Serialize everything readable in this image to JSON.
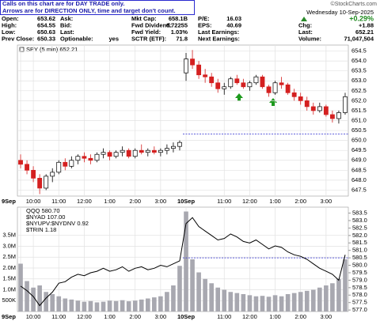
{
  "quote": {
    "notice": [
      "Calls on this chart are for DAY TRADE only.",
      "Arrows are for DIRECTION ONLY, time and target don't count."
    ],
    "copyright": "©StockCharts.com",
    "columns": [
      [
        [
          "Open:",
          "653.62"
        ],
        [
          "High:",
          "654.55"
        ],
        [
          "Low:",
          "650.63"
        ],
        [
          "Prev Close:",
          "650.33"
        ]
      ],
      [
        [
          "Ask:"
        ],
        [
          "Bid:"
        ],
        [
          "Last:"
        ],
        [
          "Optionable:",
          "yes"
        ]
      ],
      [
        [
          "Mkt Cap:",
          "658.1B"
        ],
        [
          "Fwd Dividend:",
          "6.72255"
        ],
        [
          "Fwd Yield:",
          "1.03%"
        ],
        [
          "SCTR (ETF):",
          "71.8"
        ]
      ],
      [
        [
          "P/E:",
          "16.03"
        ],
        [
          "EPS:",
          "40.69"
        ],
        [
          "Last Earnings:"
        ],
        [
          "Next Earnings:"
        ]
      ]
    ],
    "date": "Wednesday 10-Sep-2025",
    "change_pct": "+0.29%",
    "right": [
      [
        "Chg:",
        "+1.88"
      ],
      [
        "Last:",
        "652.21"
      ],
      [
        "Volume:",
        "71,047,504"
      ]
    ]
  },
  "chart_data": [
    {
      "type": "candlestick",
      "legend": "SPY (5 min) 652.21",
      "categories": [
        "9Sep",
        null,
        "10:00",
        null,
        null,
        null,
        "11:00",
        null,
        null,
        null,
        "12:00",
        null,
        null,
        null,
        "1:00",
        null,
        null,
        null,
        "2:00",
        null,
        null,
        null,
        "3:00",
        null,
        null,
        null,
        "10Sep",
        null,
        null,
        null,
        null,
        null,
        "11:00",
        null,
        null,
        null,
        "12:00",
        null,
        null,
        null,
        "1:00",
        null,
        null,
        null,
        "2:00",
        null,
        null,
        null,
        "3:00",
        null,
        null,
        null
      ],
      "open": [
        649.0,
        648.8,
        648.5,
        648.1,
        647.6,
        648.2,
        648.4,
        648.9,
        648.7,
        649.0,
        649.2,
        649.1,
        649.0,
        649.3,
        649.4,
        649.2,
        649.4,
        649.5,
        649.2,
        649.5,
        649.4,
        649.5,
        649.4,
        649.5,
        649.6,
        649.7,
        653.4,
        654.1,
        653.8,
        653.3,
        653.2,
        652.9,
        652.6,
        652.7,
        653.1,
        652.9,
        652.7,
        652.9,
        653.2,
        652.7,
        652.4,
        652.9,
        652.8,
        652.4,
        652.2,
        652.0,
        651.7,
        651.5,
        651.7,
        651.3,
        651.1,
        651.4
      ],
      "high": [
        649.3,
        649.0,
        648.7,
        648.3,
        648.3,
        648.6,
        649.0,
        649.1,
        649.2,
        649.3,
        649.4,
        649.3,
        649.4,
        649.6,
        649.5,
        649.5,
        649.7,
        649.6,
        649.6,
        649.8,
        649.6,
        649.7,
        649.6,
        649.8,
        649.9,
        650.0,
        654.4,
        654.55,
        654.0,
        653.6,
        653.4,
        653.1,
        652.9,
        653.2,
        653.3,
        653.1,
        653.0,
        653.3,
        653.3,
        652.8,
        653.0,
        653.2,
        652.9,
        652.6,
        652.4,
        652.2,
        651.9,
        651.9,
        651.8,
        651.5,
        651.5,
        652.4
      ],
      "low": [
        648.6,
        648.3,
        647.9,
        647.3,
        647.5,
        647.9,
        648.3,
        648.5,
        648.6,
        648.8,
        648.9,
        648.8,
        648.9,
        649.1,
        649.0,
        649.1,
        649.2,
        649.1,
        649.1,
        649.3,
        649.2,
        649.3,
        649.2,
        649.3,
        649.4,
        649.5,
        653.0,
        653.6,
        653.1,
        652.9,
        652.7,
        652.4,
        652.3,
        652.6,
        652.8,
        652.6,
        652.5,
        652.8,
        652.6,
        652.2,
        652.3,
        652.6,
        652.3,
        652.0,
        651.8,
        651.5,
        651.3,
        651.4,
        651.2,
        650.9,
        650.85,
        651.3
      ],
      "close": [
        648.8,
        648.5,
        648.1,
        647.6,
        648.2,
        648.4,
        648.9,
        648.7,
        649.0,
        649.2,
        649.1,
        649.0,
        649.3,
        649.4,
        649.2,
        649.4,
        649.5,
        649.2,
        649.5,
        649.4,
        649.5,
        649.4,
        649.5,
        649.6,
        649.7,
        649.9,
        654.1,
        653.8,
        653.3,
        653.2,
        652.9,
        652.6,
        652.7,
        653.1,
        652.9,
        652.7,
        652.9,
        653.2,
        652.7,
        652.4,
        652.9,
        652.8,
        652.4,
        652.2,
        652.0,
        651.7,
        651.5,
        651.7,
        651.3,
        651.1,
        651.4,
        652.2
      ],
      "up_color": "#000000",
      "down_color": "#d42020",
      "ref_line": {
        "value": 650.33,
        "color": "#2a2ad0"
      },
      "ylim": [
        647.2,
        654.8
      ],
      "yticks": [
        647.5,
        {
          "value": 648,
          "label": "648.0"
        },
        648.5,
        {
          "value": 649,
          "label": "649.0"
        },
        649.5,
        {
          "value": 650,
          "label": "650.0"
        },
        650.5,
        {
          "value": 651,
          "label": "651.0"
        },
        651.5,
        {
          "value": 652,
          "label": "652.0"
        },
        652.5,
        {
          "value": 653,
          "label": "653.0"
        },
        653.5,
        {
          "value": 654,
          "label": "654.0"
        },
        654.5
      ],
      "grid": true
    },
    {
      "type": "bar",
      "categories": [
        "9Sep",
        null,
        "10:00",
        null,
        null,
        null,
        "11:00",
        null,
        null,
        null,
        "12:00",
        null,
        null,
        null,
        "1:00",
        null,
        null,
        null,
        "2:00",
        null,
        null,
        null,
        "3:00",
        null,
        null,
        null,
        "10Sep",
        null,
        null,
        null,
        null,
        null,
        "11:00",
        null,
        null,
        null,
        "12:00",
        null,
        null,
        null,
        "1:00",
        null,
        null,
        null,
        "2:00",
        null,
        null,
        null,
        "3:00",
        null,
        null,
        null
      ],
      "values": [
        2200000,
        1400000,
        1100000,
        1200000,
        900000,
        800000,
        700000,
        600000,
        550000,
        500000,
        450000,
        480000,
        420000,
        450000,
        500000,
        480000,
        520000,
        470000,
        500000,
        550000,
        600000,
        650000,
        700000,
        900000,
        1200000,
        2100000,
        4600000,
        2400000,
        1800000,
        1500000,
        1300000,
        1100000,
        1000000,
        900000,
        850000,
        800000,
        750000,
        700000,
        720000,
        680000,
        750000,
        700000,
        800000,
        850000,
        900000,
        950000,
        1000000,
        1100000,
        1200000,
        1300000,
        1500000,
        2400000
      ],
      "color": "#a8a8b0",
      "ylim": [
        0,
        4800000
      ],
      "yticks": [
        {
          "value": 500000,
          "label": "500K"
        },
        {
          "value": 1000000,
          "label": "1.0M"
        },
        {
          "value": 1500000,
          "label": "1.5M"
        },
        {
          "value": 2000000,
          "label": "2.0M"
        },
        {
          "value": 2500000,
          "label": "2.5M"
        },
        {
          "value": 3000000,
          "label": "3.0M"
        },
        {
          "value": 3500000,
          "label": "3.5M"
        }
      ],
      "series": [
        {
          "name": "QQQ 580.70",
          "color": "#000000",
          "axis": "y2",
          "values": [
            578.6,
            578.3,
            577.9,
            577.3,
            577.8,
            578.2,
            578.8,
            578.9,
            579.2,
            579.4,
            579.3,
            579.5,
            579.6,
            579.8,
            579.6,
            579.7,
            579.9,
            579.6,
            579.8,
            579.9,
            579.7,
            579.8,
            580.0,
            579.9,
            580.1,
            580.3,
            582.8,
            583.2,
            582.6,
            582.3,
            582.0,
            581.7,
            581.8,
            582.1,
            581.9,
            581.6,
            581.5,
            581.7,
            581.4,
            581.1,
            581.3,
            581.2,
            580.9,
            580.7,
            580.6,
            580.4,
            580.1,
            579.8,
            579.6,
            579.4,
            579.0,
            580.7
          ]
        }
      ],
      "overlay_labels": [
        "$NYAD 107.00",
        "$NYUPV:$NYDNV 0.92",
        "$TRIN 1.18"
      ],
      "ref_line": {
        "value": 580.5,
        "color": "#2a2ad0"
      },
      "y2lim": [
        576.9,
        583.9
      ],
      "y2ticks": [
        {
          "value": 577,
          "label": "577.0"
        },
        577.5,
        {
          "value": 578,
          "label": "578.0"
        },
        578.5,
        {
          "value": 579,
          "label": "579.0"
        },
        579.5,
        {
          "value": 580,
          "label": "580.0"
        },
        580.5,
        {
          "value": 581,
          "label": "581.0"
        },
        581.5,
        {
          "value": 582,
          "label": "582.0"
        },
        582.5,
        {
          "value": 583,
          "label": "583.0"
        },
        583.5
      ],
      "grid": true
    }
  ]
}
